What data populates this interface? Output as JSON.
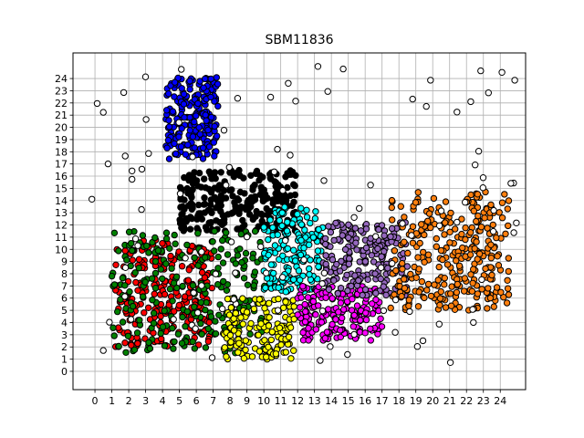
{
  "chart_data": {
    "type": "scatter",
    "title": "SBM11836",
    "xlabel": "",
    "ylabel": "",
    "xlim": [
      -1.3,
      25.5
    ],
    "ylim": [
      -1.5,
      26.1
    ],
    "grid": true,
    "x_ticks": [
      "0",
      "1",
      "2",
      "3",
      "4",
      "5",
      "6",
      "7",
      "8",
      "9",
      "10",
      "11",
      "12",
      "13",
      "14",
      "15",
      "16",
      "17",
      "18",
      "19",
      "20",
      "21",
      "22",
      "23",
      "24"
    ],
    "y_ticks": [
      "0",
      "1",
      "2",
      "3",
      "4",
      "5",
      "6",
      "7",
      "8",
      "9",
      "10",
      "11",
      "12",
      "13",
      "14",
      "15",
      "16",
      "17",
      "18",
      "19",
      "20",
      "21",
      "22",
      "23",
      "24"
    ],
    "colors": {
      "outline": "#000000",
      "unassigned": "#ffffff",
      "blue": "#0000ff",
      "black": "#000000",
      "red": "#ff0000",
      "green": "#008000",
      "yellow": "#ffff00",
      "cyan": "#00ffff",
      "magenta": "#ff00ff",
      "purple": "#9467bd",
      "orange": "#ff7f0e"
    },
    "series": [
      {
        "color": "blue",
        "x_range": [
          4.2,
          7.3
        ],
        "y_range": [
          17.4,
          24.1
        ],
        "count": 200
      },
      {
        "color": "black",
        "x_range": [
          5.0,
          12.0
        ],
        "y_range": [
          11.5,
          16.5
        ],
        "count": 260
      },
      {
        "color": "red",
        "x_range": [
          1.2,
          7.0
        ],
        "y_range": [
          2.0,
          10.8
        ],
        "count": 240
      },
      {
        "color": "green",
        "x_range": [
          1.0,
          10.2
        ],
        "y_range": [
          1.5,
          11.5
        ],
        "count": 240
      },
      {
        "color": "yellow",
        "x_range": [
          7.6,
          11.8
        ],
        "y_range": [
          1.0,
          6.0
        ],
        "count": 150
      },
      {
        "color": "cyan",
        "x_range": [
          10.0,
          13.5
        ],
        "y_range": [
          6.5,
          13.5
        ],
        "count": 170
      },
      {
        "color": "magenta",
        "x_range": [
          12.0,
          17.0
        ],
        "y_range": [
          2.5,
          7.0
        ],
        "count": 180
      },
      {
        "color": "purple",
        "x_range": [
          13.5,
          18.5
        ],
        "y_range": [
          6.2,
          12.2
        ],
        "count": 200
      },
      {
        "color": "orange",
        "x_range": [
          17.5,
          24.5
        ],
        "y_range": [
          5.0,
          14.8
        ],
        "count": 300
      },
      {
        "color": "unassigned",
        "x_range": [
          -0.2,
          25.0
        ],
        "y_range": [
          0.0,
          25.0
        ],
        "count": 110
      }
    ]
  }
}
